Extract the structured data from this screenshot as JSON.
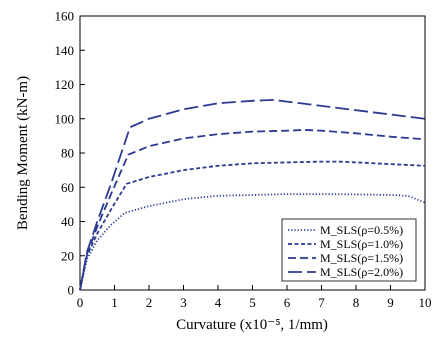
{
  "chart_data": {
    "type": "line",
    "title": "",
    "xlabel": "Curvature (x10⁻⁵, 1/mm)",
    "ylabel": "Bending Moment (kN-m)",
    "xlim": [
      0,
      10
    ],
    "ylim": [
      0,
      160
    ],
    "xticks": [
      0,
      1,
      2,
      3,
      4,
      5,
      6,
      7,
      8,
      9,
      10
    ],
    "yticks": [
      0,
      20,
      40,
      60,
      80,
      100,
      120,
      140,
      160
    ],
    "grid": false,
    "legend_position": "bottom-right",
    "series": [
      {
        "name": "M_SLS(ρ=0.5%)",
        "color": "#2b3990",
        "dash": "dotted",
        "x": [
          0,
          0.2,
          0.5,
          0.9,
          1.3,
          2,
          3,
          4,
          5,
          6,
          7,
          8,
          9,
          9.5,
          10
        ],
        "y": [
          0,
          18,
          29,
          38,
          45,
          49,
          53,
          55,
          55.5,
          56,
          56,
          55.8,
          55.5,
          55,
          51
        ]
      },
      {
        "name": "M_SLS(ρ=1.0%)",
        "color": "#2b3990",
        "dash": "short",
        "x": [
          0,
          0.2,
          0.5,
          0.9,
          1.35,
          2,
          3,
          4,
          5,
          6,
          7,
          7.5,
          8,
          9,
          10
        ],
        "y": [
          0,
          20,
          33,
          47,
          62,
          66,
          70,
          72.5,
          74,
          74.5,
          75,
          75,
          74.5,
          73.5,
          72.5
        ]
      },
      {
        "name": "M_SLS(ρ=1.5%)",
        "color": "#2b3990",
        "dash": "medium",
        "x": [
          0,
          0.2,
          0.5,
          0.9,
          1.4,
          2,
          3,
          4,
          5,
          6,
          6.5,
          7,
          8,
          9,
          10
        ],
        "y": [
          0,
          21,
          37,
          56,
          79,
          84,
          88.5,
          91,
          92.5,
          93,
          93.5,
          93,
          91.5,
          89.5,
          88
        ]
      },
      {
        "name": "M_SLS(ρ=2.0%)",
        "color": "#2b3990",
        "dash": "long",
        "x": [
          0,
          0.2,
          0.5,
          0.9,
          1.45,
          2,
          3,
          4,
          5,
          5.6,
          6,
          7,
          8,
          9,
          10
        ],
        "y": [
          0,
          22,
          40,
          62,
          95,
          100,
          105.5,
          109,
          110.5,
          111,
          110,
          107.5,
          105,
          102.5,
          100
        ]
      }
    ]
  }
}
